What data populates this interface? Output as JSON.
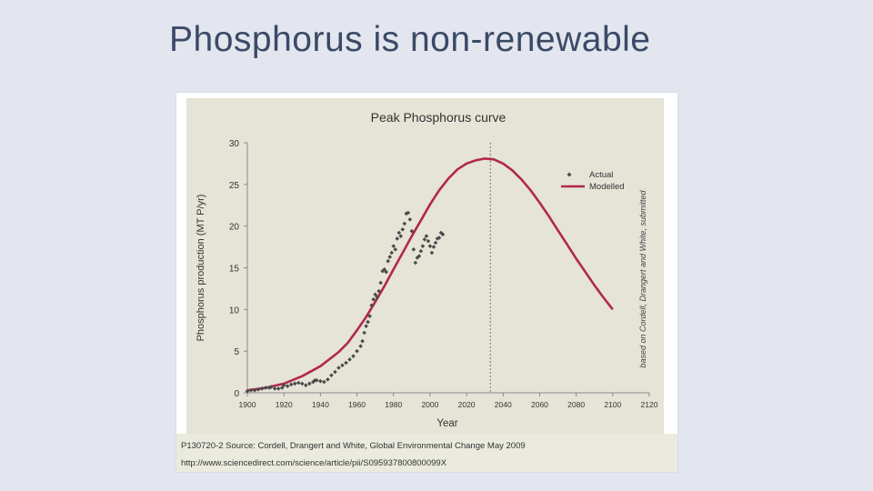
{
  "slide": {
    "title": "Phosphorus is non-renewable"
  },
  "caption": {
    "source": "P130720-2 Source: Cordell, Drangert and White, Global Environmental Change May 2009",
    "url": "http://www.sciencedirect.com/science/article/pii/S095937800800099X"
  },
  "colors": {
    "background": "#e3e6ef",
    "plot_bg": "#e6e3d7",
    "modelled": "#b0294a",
    "actual": "#4a4a4a"
  },
  "chart_data": {
    "type": "line",
    "title": "Peak Phosphorus curve",
    "xlabel": "Year",
    "ylabel": "Phosphorus production (MT P/yr)",
    "xlim": [
      1900,
      2120
    ],
    "ylim": [
      0,
      30
    ],
    "x_ticks": [
      1900,
      1920,
      1940,
      1960,
      1980,
      2000,
      2020,
      2040,
      2060,
      2080,
      2100,
      2120
    ],
    "y_ticks": [
      0,
      5,
      10,
      15,
      20,
      25,
      30
    ],
    "grid": false,
    "legend_position": "top-right",
    "peak_marker_year": 2033,
    "side_note": "based on Cordell, Drangert and White, submitted",
    "series": [
      {
        "name": "Actual",
        "style": "points",
        "points": [
          [
            1900,
            0.2
          ],
          [
            1902,
            0.3
          ],
          [
            1904,
            0.3
          ],
          [
            1906,
            0.4
          ],
          [
            1908,
            0.5
          ],
          [
            1910,
            0.6
          ],
          [
            1912,
            0.6
          ],
          [
            1913,
            0.7
          ],
          [
            1915,
            0.5
          ],
          [
            1917,
            0.5
          ],
          [
            1919,
            0.6
          ],
          [
            1920,
            0.9
          ],
          [
            1922,
            0.8
          ],
          [
            1924,
            1.0
          ],
          [
            1926,
            1.1
          ],
          [
            1928,
            1.2
          ],
          [
            1930,
            1.1
          ],
          [
            1932,
            0.9
          ],
          [
            1934,
            1.1
          ],
          [
            1936,
            1.3
          ],
          [
            1937,
            1.5
          ],
          [
            1938,
            1.5
          ],
          [
            1940,
            1.4
          ],
          [
            1942,
            1.3
          ],
          [
            1944,
            1.6
          ],
          [
            1946,
            2.1
          ],
          [
            1948,
            2.5
          ],
          [
            1950,
            3.0
          ],
          [
            1952,
            3.3
          ],
          [
            1954,
            3.6
          ],
          [
            1956,
            4.0
          ],
          [
            1958,
            4.4
          ],
          [
            1960,
            5.0
          ],
          [
            1962,
            5.6
          ],
          [
            1963,
            6.2
          ],
          [
            1964,
            7.2
          ],
          [
            1965,
            8.0
          ],
          [
            1966,
            8.5
          ],
          [
            1967,
            9.2
          ],
          [
            1968,
            10.5
          ],
          [
            1969,
            11.2
          ],
          [
            1970,
            11.8
          ],
          [
            1971,
            11.5
          ],
          [
            1972,
            12.2
          ],
          [
            1973,
            13.2
          ],
          [
            1974,
            14.6
          ],
          [
            1975,
            14.8
          ],
          [
            1976,
            14.5
          ],
          [
            1977,
            15.8
          ],
          [
            1978,
            16.3
          ],
          [
            1979,
            16.8
          ],
          [
            1980,
            17.6
          ],
          [
            1981,
            17.2
          ],
          [
            1982,
            18.5
          ],
          [
            1983,
            19.2
          ],
          [
            1984,
            18.8
          ],
          [
            1985,
            19.6
          ],
          [
            1986,
            20.3
          ],
          [
            1987,
            21.5
          ],
          [
            1988,
            21.6
          ],
          [
            1989,
            20.8
          ],
          [
            1990,
            19.4
          ],
          [
            1991,
            17.2
          ],
          [
            1992,
            15.6
          ],
          [
            1993,
            16.2
          ],
          [
            1994,
            16.4
          ],
          [
            1995,
            17.0
          ],
          [
            1996,
            17.6
          ],
          [
            1997,
            18.4
          ],
          [
            1998,
            18.8
          ],
          [
            1999,
            18.2
          ],
          [
            2000,
            17.6
          ],
          [
            2001,
            16.8
          ],
          [
            2002,
            17.5
          ],
          [
            2003,
            18.0
          ],
          [
            2004,
            18.5
          ],
          [
            2005,
            18.6
          ],
          [
            2006,
            19.2
          ],
          [
            2007,
            19.0
          ]
        ]
      },
      {
        "name": "Modelled",
        "style": "line",
        "points": [
          [
            1900,
            0.3
          ],
          [
            1910,
            0.6
          ],
          [
            1920,
            1.1
          ],
          [
            1930,
            2.0
          ],
          [
            1940,
            3.2
          ],
          [
            1950,
            4.9
          ],
          [
            1955,
            6.0
          ],
          [
            1960,
            7.5
          ],
          [
            1965,
            9.1
          ],
          [
            1970,
            10.9
          ],
          [
            1975,
            12.8
          ],
          [
            1980,
            14.8
          ],
          [
            1985,
            16.8
          ],
          [
            1990,
            18.8
          ],
          [
            1995,
            20.7
          ],
          [
            2000,
            22.6
          ],
          [
            2005,
            24.3
          ],
          [
            2010,
            25.7
          ],
          [
            2015,
            26.8
          ],
          [
            2020,
            27.5
          ],
          [
            2025,
            27.9
          ],
          [
            2030,
            28.1
          ],
          [
            2035,
            28.0
          ],
          [
            2040,
            27.5
          ],
          [
            2045,
            26.7
          ],
          [
            2050,
            25.6
          ],
          [
            2055,
            24.3
          ],
          [
            2060,
            22.8
          ],
          [
            2065,
            21.2
          ],
          [
            2070,
            19.5
          ],
          [
            2075,
            17.8
          ],
          [
            2080,
            16.1
          ],
          [
            2085,
            14.5
          ],
          [
            2090,
            12.9
          ],
          [
            2095,
            11.4
          ],
          [
            2100,
            10.0
          ]
        ]
      }
    ]
  }
}
